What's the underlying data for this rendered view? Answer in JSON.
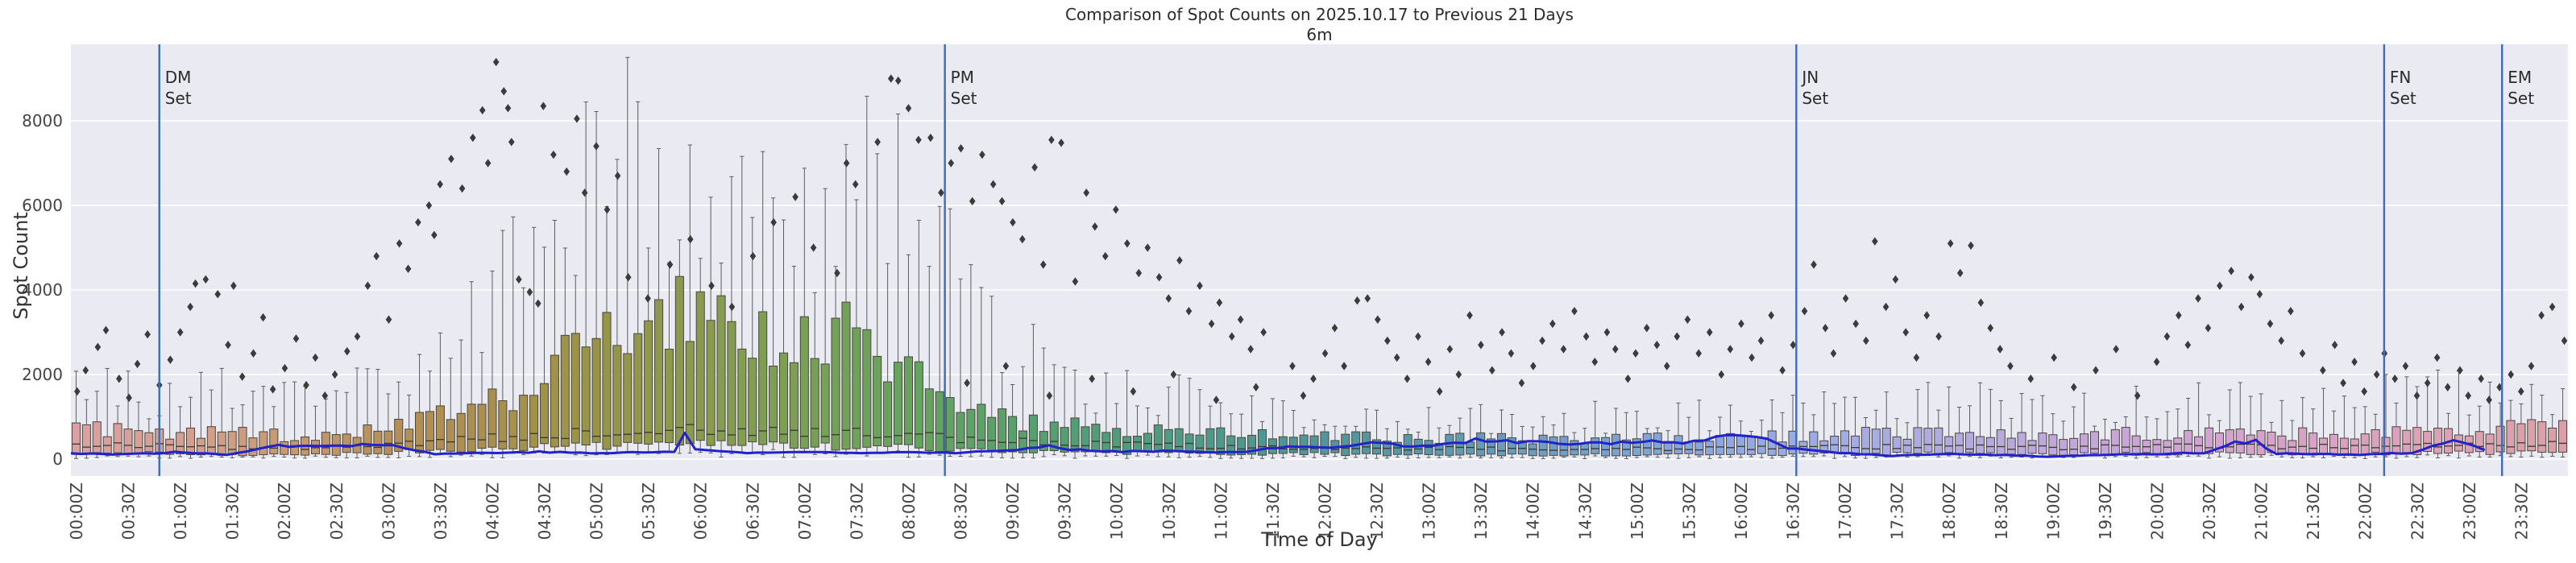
{
  "title": "Comparison of Spot Counts on 2025.10.17 to Previous 21 Days",
  "subtitle": "6m",
  "axes": {
    "xlabel": "Time of Day",
    "ylabel": "Spot Count"
  },
  "colors": {
    "axes_bg": "#eaeaf2",
    "grid": "#ffffff",
    "flier": "#3b3b3b",
    "box_edge": "#4a473d",
    "median": "#3a382f",
    "whisker": "#5c5c5c",
    "today_line": "#2222cc",
    "event_line": "#3f6db5",
    "tick_text": "#444444",
    "label_text": "#2b2b2b",
    "hour_anchors": [
      "#d9a1a4",
      "#d6a093",
      "#c89a76",
      "#b78f5b",
      "#a98f4f",
      "#999447",
      "#8a9a4e",
      "#7aa055",
      "#68a35f",
      "#5aa06b",
      "#4f9d7c",
      "#4f998a",
      "#529599",
      "#5b98ab",
      "#6b9dc0",
      "#7da3d4",
      "#90a8e0",
      "#a2ace4",
      "#b1abe0",
      "#bfa8dd",
      "#cca4d8",
      "#d6a2cd",
      "#dba2c0",
      "#dba2b2",
      "#d9a1a4"
    ]
  },
  "chart_data": {
    "type": "boxplot-timeseries-with-line-and-outliers",
    "values_estimated": true,
    "bin_minutes": 6,
    "hours": 24,
    "ylim": [
      -400,
      9810
    ],
    "y_ticks": [
      0,
      2000,
      4000,
      6000,
      8000
    ],
    "x_tick_labels": [
      "00:00Z",
      "00:30Z",
      "01:00Z",
      "01:30Z",
      "02:00Z",
      "02:30Z",
      "03:00Z",
      "03:30Z",
      "04:00Z",
      "04:30Z",
      "05:00Z",
      "05:30Z",
      "06:00Z",
      "06:30Z",
      "07:00Z",
      "07:30Z",
      "08:00Z",
      "08:30Z",
      "09:00Z",
      "09:30Z",
      "10:00Z",
      "10:30Z",
      "11:00Z",
      "11:30Z",
      "12:00Z",
      "12:30Z",
      "13:00Z",
      "13:30Z",
      "14:00Z",
      "14:30Z",
      "15:00Z",
      "15:30Z",
      "16:00Z",
      "16:30Z",
      "17:00Z",
      "17:30Z",
      "18:00Z",
      "18:30Z",
      "19:00Z",
      "19:30Z",
      "20:00Z",
      "20:30Z",
      "21:00Z",
      "21:30Z",
      "22:00Z",
      "22:30Z",
      "23:00Z",
      "23:30Z"
    ],
    "box_envelope_30min": {
      "q3": [
        700,
        680,
        620,
        600,
        560,
        600,
        750,
        1000,
        1300,
        1800,
        2800,
        3200,
        3600,
        3000,
        2700,
        3000,
        2300,
        1200,
        900,
        800,
        720,
        660,
        620,
        580,
        560,
        530,
        510,
        500,
        495,
        505,
        515,
        505,
        525,
        560,
        600,
        620,
        640,
        610,
        560,
        580,
        600,
        640,
        620,
        600,
        640,
        690,
        710,
        730
      ],
      "median": [
        330,
        320,
        300,
        285,
        265,
        285,
        335,
        420,
        500,
        560,
        620,
        660,
        700,
        670,
        640,
        620,
        570,
        480,
        430,
        390,
        355,
        330,
        305,
        285,
        272,
        258,
        250,
        246,
        242,
        246,
        252,
        247,
        256,
        268,
        286,
        295,
        302,
        292,
        272,
        282,
        292,
        308,
        298,
        290,
        308,
        330,
        340,
        350
      ],
      "q1": [
        150,
        148,
        125,
        105,
        100,
        112,
        150,
        200,
        250,
        280,
        305,
        325,
        350,
        330,
        305,
        300,
        280,
        240,
        210,
        180,
        162,
        150,
        140,
        130,
        122,
        112,
        106,
        102,
        100,
        102,
        106,
        103,
        107,
        113,
        122,
        127,
        131,
        126,
        116,
        121,
        126,
        134,
        129,
        125,
        133,
        143,
        148,
        152
      ],
      "whisker_high": [
        1500,
        1600,
        1500,
        1550,
        1350,
        1420,
        1900,
        2700,
        3800,
        5200,
        6500,
        7500,
        6800,
        6300,
        6000,
        7000,
        6200,
        4200,
        2600,
        2000,
        1700,
        1500,
        1300,
        1200,
        1150,
        1050,
        1000,
        980,
        950,
        980,
        1010,
        985,
        1030,
        1110,
        1250,
        1300,
        1350,
        1280,
        1150,
        1220,
        1280,
        1400,
        1330,
        1280,
        1380,
        1500,
        1550,
        1600
      ]
    },
    "today_line": {
      "name": "2025.10.17",
      "keyframes": [
        [
          0,
          140
        ],
        [
          30,
          110
        ],
        [
          60,
          160
        ],
        [
          90,
          110
        ],
        [
          115,
          300
        ],
        [
          135,
          330
        ],
        [
          160,
          340
        ],
        [
          185,
          330
        ],
        [
          210,
          120
        ],
        [
          240,
          150
        ],
        [
          270,
          170
        ],
        [
          300,
          140
        ],
        [
          330,
          160
        ],
        [
          351,
          180
        ],
        [
          354,
          590
        ],
        [
          360,
          240
        ],
        [
          390,
          140
        ],
        [
          420,
          170
        ],
        [
          450,
          150
        ],
        [
          480,
          170
        ],
        [
          510,
          150
        ],
        [
          540,
          200
        ],
        [
          565,
          300
        ],
        [
          580,
          220
        ],
        [
          610,
          180
        ],
        [
          640,
          200
        ],
        [
          670,
          150
        ],
        [
          700,
          280
        ],
        [
          730,
          300
        ],
        [
          750,
          380
        ],
        [
          780,
          300
        ],
        [
          810,
          450
        ],
        [
          840,
          400
        ],
        [
          870,
          350
        ],
        [
          900,
          420
        ],
        [
          930,
          380
        ],
        [
          955,
          520
        ],
        [
          975,
          550
        ],
        [
          990,
          250
        ],
        [
          1020,
          150
        ],
        [
          1050,
          80
        ],
        [
          1080,
          120
        ],
        [
          1110,
          100
        ],
        [
          1140,
          60
        ],
        [
          1170,
          100
        ],
        [
          1200,
          120
        ],
        [
          1230,
          150
        ],
        [
          1248,
          400
        ],
        [
          1260,
          420
        ],
        [
          1272,
          130
        ],
        [
          1290,
          120
        ],
        [
          1320,
          100
        ],
        [
          1350,
          150
        ],
        [
          1374,
          430
        ],
        [
          1380,
          380
        ],
        [
          1395,
          160
        ]
      ]
    },
    "event_lines": [
      {
        "name": "DM",
        "sub": "Set",
        "minutes": 51
      },
      {
        "name": "PM",
        "sub": "Set",
        "minutes": 504
      },
      {
        "name": "JN",
        "sub": "Set",
        "minutes": 995
      },
      {
        "name": "FN",
        "sub": "Set",
        "minutes": 1334
      },
      {
        "name": "EM",
        "sub": "Set",
        "minutes": 1402
      }
    ],
    "outliers": [
      [
        3,
        1600
      ],
      [
        9,
        2100
      ],
      [
        15,
        2650
      ],
      [
        21,
        3050
      ],
      [
        27,
        1900
      ],
      [
        33,
        1450
      ],
      [
        39,
        2250
      ],
      [
        45,
        2950
      ],
      [
        51,
        1750
      ],
      [
        57,
        2350
      ],
      [
        63,
        3000
      ],
      [
        69,
        3600
      ],
      [
        72,
        4150
      ],
      [
        78,
        4250
      ],
      [
        84,
        3900
      ],
      [
        90,
        2700
      ],
      [
        93,
        4100
      ],
      [
        99,
        1950
      ],
      [
        105,
        2500
      ],
      [
        111,
        3350
      ],
      [
        117,
        1650
      ],
      [
        123,
        2150
      ],
      [
        129,
        2850
      ],
      [
        135,
        1750
      ],
      [
        141,
        2400
      ],
      [
        147,
        1500
      ],
      [
        153,
        2000
      ],
      [
        159,
        2550
      ],
      [
        165,
        2900
      ],
      [
        171,
        4100
      ],
      [
        177,
        4800
      ],
      [
        183,
        3300
      ],
      [
        189,
        5100
      ],
      [
        195,
        4500
      ],
      [
        201,
        5600
      ],
      [
        207,
        6000
      ],
      [
        210,
        5300
      ],
      [
        213,
        6500
      ],
      [
        219,
        7100
      ],
      [
        225,
        6400
      ],
      [
        231,
        7600
      ],
      [
        237,
        8250
      ],
      [
        240,
        7000
      ],
      [
        246,
        9390
      ],
      [
        249,
        8700
      ],
      [
        252,
        8300
      ],
      [
        255,
        7500
      ],
      [
        258,
        4250
      ],
      [
        264,
        3950
      ],
      [
        270,
        3680
      ],
      [
        273,
        8350
      ],
      [
        279,
        7200
      ],
      [
        285,
        6800
      ],
      [
        291,
        8050
      ],
      [
        297,
        6300
      ],
      [
        303,
        7400
      ],
      [
        309,
        5900
      ],
      [
        315,
        6700
      ],
      [
        321,
        4300
      ],
      [
        333,
        3800
      ],
      [
        345,
        4600
      ],
      [
        357,
        5200
      ],
      [
        369,
        4100
      ],
      [
        381,
        3600
      ],
      [
        393,
        4800
      ],
      [
        405,
        5600
      ],
      [
        417,
        6200
      ],
      [
        429,
        5000
      ],
      [
        441,
        4400
      ],
      [
        447,
        7000
      ],
      [
        453,
        6500
      ],
      [
        465,
        7500
      ],
      [
        472,
        9000
      ],
      [
        477,
        8950
      ],
      [
        483,
        8300
      ],
      [
        489,
        7550
      ],
      [
        495,
        7600
      ],
      [
        501,
        6300
      ],
      [
        507,
        7000
      ],
      [
        513,
        7350
      ],
      [
        519,
        6100
      ],
      [
        525,
        7200
      ],
      [
        531,
        6500
      ],
      [
        537,
        6100
      ],
      [
        543,
        5600
      ],
      [
        549,
        5200
      ],
      [
        555,
        6900
      ],
      [
        561,
        4600
      ],
      [
        565,
        7550
      ],
      [
        571,
        7480
      ],
      [
        579,
        4200
      ],
      [
        585,
        6300
      ],
      [
        591,
        5500
      ],
      [
        597,
        4800
      ],
      [
        603,
        5900
      ],
      [
        609,
        5100
      ],
      [
        615,
        4400
      ],
      [
        621,
        5000
      ],
      [
        627,
        4300
      ],
      [
        633,
        3800
      ],
      [
        639,
        4700
      ],
      [
        645,
        3500
      ],
      [
        651,
        4100
      ],
      [
        657,
        3200
      ],
      [
        663,
        3700
      ],
      [
        669,
        2900
      ],
      [
        675,
        3300
      ],
      [
        681,
        2600
      ],
      [
        687,
        3000
      ],
      [
        516,
        1800
      ],
      [
        540,
        2200
      ],
      [
        564,
        1500
      ],
      [
        588,
        1900
      ],
      [
        612,
        1600
      ],
      [
        636,
        2000
      ],
      [
        660,
        1400
      ],
      [
        684,
        1700
      ],
      [
        705,
        2200
      ],
      [
        711,
        1500
      ],
      [
        717,
        1900
      ],
      [
        723,
        2500
      ],
      [
        729,
        3100
      ],
      [
        735,
        2200
      ],
      [
        741,
        3750
      ],
      [
        747,
        3800
      ],
      [
        753,
        3300
      ],
      [
        759,
        2800
      ],
      [
        765,
        2400
      ],
      [
        771,
        1900
      ],
      [
        777,
        2900
      ],
      [
        783,
        2300
      ],
      [
        789,
        1600
      ],
      [
        795,
        2600
      ],
      [
        801,
        2000
      ],
      [
        807,
        3400
      ],
      [
        813,
        2700
      ],
      [
        819,
        2100
      ],
      [
        825,
        3000
      ],
      [
        831,
        2500
      ],
      [
        837,
        1800
      ],
      [
        843,
        2200
      ],
      [
        849,
        2800
      ],
      [
        855,
        3200
      ],
      [
        861,
        2600
      ],
      [
        867,
        3500
      ],
      [
        873,
        2900
      ],
      [
        879,
        2300
      ],
      [
        885,
        3000
      ],
      [
        891,
        2600
      ],
      [
        897,
        1900
      ],
      [
        903,
        2500
      ],
      [
        909,
        3100
      ],
      [
        915,
        2700
      ],
      [
        921,
        2200
      ],
      [
        927,
        2900
      ],
      [
        933,
        3300
      ],
      [
        939,
        2500
      ],
      [
        945,
        3000
      ],
      [
        951,
        2000
      ],
      [
        957,
        2600
      ],
      [
        963,
        3200
      ],
      [
        969,
        2400
      ],
      [
        975,
        2800
      ],
      [
        981,
        3400
      ],
      [
        987,
        2100
      ],
      [
        993,
        2700
      ],
      [
        999,
        3500
      ],
      [
        1005,
        4600
      ],
      [
        1011,
        3100
      ],
      [
        1017,
        2500
      ],
      [
        1023,
        3800
      ],
      [
        1029,
        3200
      ],
      [
        1035,
        2800
      ],
      [
        1041,
        5150
      ],
      [
        1047,
        3600
      ],
      [
        1053,
        4250
      ],
      [
        1059,
        3000
      ],
      [
        1065,
        2400
      ],
      [
        1071,
        3400
      ],
      [
        1077,
        2900
      ],
      [
        1083,
        5100
      ],
      [
        1089,
        4400
      ],
      [
        1095,
        5050
      ],
      [
        1101,
        3700
      ],
      [
        1107,
        3100
      ],
      [
        1113,
        2600
      ],
      [
        1119,
        2200
      ],
      [
        1131,
        1900
      ],
      [
        1143,
        2400
      ],
      [
        1155,
        1700
      ],
      [
        1167,
        2100
      ],
      [
        1179,
        2600
      ],
      [
        1191,
        1500
      ],
      [
        1203,
        2300
      ],
      [
        1209,
        2900
      ],
      [
        1215,
        3400
      ],
      [
        1221,
        2700
      ],
      [
        1227,
        3800
      ],
      [
        1233,
        3100
      ],
      [
        1239,
        4100
      ],
      [
        1245,
        4450
      ],
      [
        1251,
        3600
      ],
      [
        1257,
        4300
      ],
      [
        1263,
        3900
      ],
      [
        1269,
        3200
      ],
      [
        1275,
        2800
      ],
      [
        1281,
        3500
      ],
      [
        1287,
        2500
      ],
      [
        1299,
        2100
      ],
      [
        1305,
        2700
      ],
      [
        1311,
        1800
      ],
      [
        1317,
        2300
      ],
      [
        1323,
        1600
      ],
      [
        1329,
        2000
      ],
      [
        1335,
        2500
      ],
      [
        1341,
        1900
      ],
      [
        1347,
        2200
      ],
      [
        1353,
        1500
      ],
      [
        1359,
        1800
      ],
      [
        1365,
        2400
      ],
      [
        1371,
        1700
      ],
      [
        1377,
        2100
      ],
      [
        1383,
        1500
      ],
      [
        1389,
        1900
      ],
      [
        1395,
        1400
      ],
      [
        1401,
        1700
      ],
      [
        1407,
        2000
      ],
      [
        1413,
        1600
      ],
      [
        1419,
        2200
      ],
      [
        1425,
        3400
      ],
      [
        1431,
        3600
      ],
      [
        1437,
        2800
      ]
    ]
  }
}
